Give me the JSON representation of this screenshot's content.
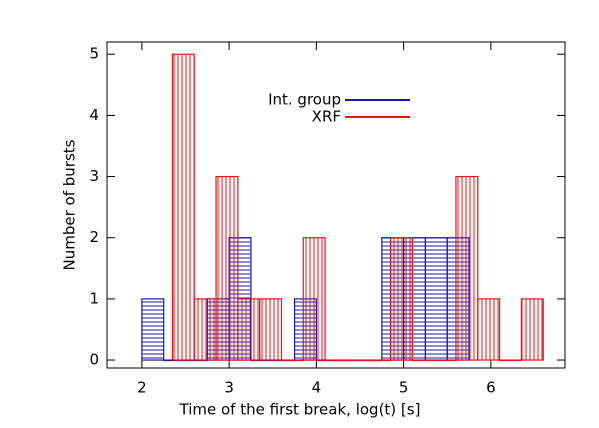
{
  "chart_data": {
    "type": "histogram",
    "xlabel": "Time of the first break, log(t) [s]",
    "ylabel": "Number of bursts",
    "xlim": [
      1.6,
      6.85
    ],
    "ylim": [
      -0.13,
      5.2
    ],
    "xticks": [
      2,
      3,
      4,
      5,
      6
    ],
    "yticks": [
      0,
      1,
      2,
      3,
      4,
      5
    ],
    "legend": "top center",
    "series": [
      {
        "name": "Int. group",
        "color": "#1a1aa0",
        "hatch": "horizontal",
        "bins": [
          2.0,
          2.25,
          2.5,
          2.75,
          3.0,
          3.25,
          3.5,
          3.75,
          4.0,
          4.25,
          4.5,
          4.75,
          5.0,
          5.25,
          5.5,
          5.75
        ],
        "values": [
          1,
          0,
          0,
          1,
          2,
          0,
          0,
          1,
          0,
          0,
          0,
          2,
          2,
          2,
          2
        ]
      },
      {
        "name": "XRF",
        "color": "#e8141a",
        "hatch": "vertical",
        "bins": [
          2.35,
          2.6,
          2.85,
          3.1,
          3.35,
          3.6,
          3.85,
          4.1,
          4.35,
          4.6,
          4.85,
          5.1,
          5.35,
          5.6,
          5.85,
          6.1,
          6.35,
          6.6
        ],
        "values": [
          5,
          1,
          3,
          1,
          1,
          0,
          2,
          0,
          0,
          0,
          2,
          0,
          0,
          3,
          1,
          0,
          1
        ]
      }
    ]
  }
}
